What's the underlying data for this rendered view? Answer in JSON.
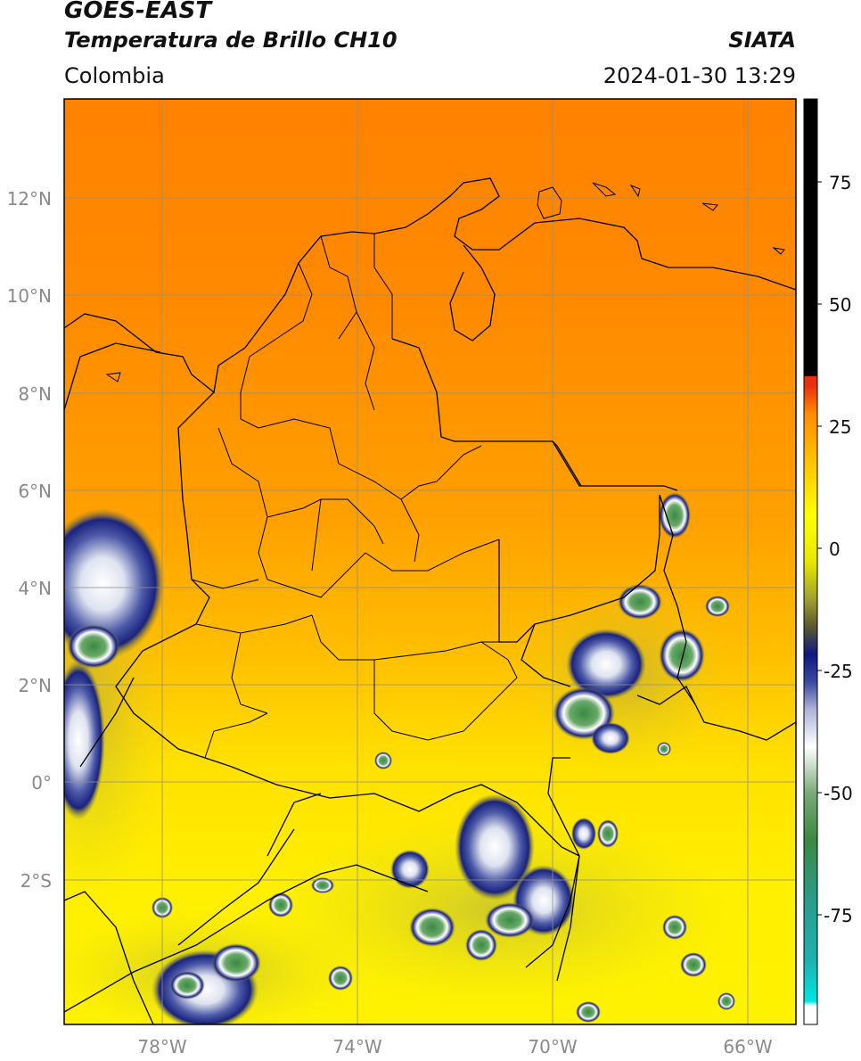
{
  "header": {
    "satellite": "GOES-EAST",
    "product": "Temperatura de Brillo CH10",
    "organization": "SIATA",
    "region": "Colombia",
    "datetime": "2024-01-30 13:29"
  },
  "map": {
    "lon_range": [
      -80,
      -65
    ],
    "lat_range": [
      -5,
      14
    ],
    "lat_ticks": [
      "12°N",
      "10°N",
      "8°N",
      "6°N",
      "4°N",
      "2°N",
      "0°",
      "2°S"
    ],
    "lon_ticks": [
      "78°W",
      "74°W",
      "70°W",
      "66°W"
    ]
  },
  "colorbar": {
    "ticks": [
      "75",
      "50",
      "25",
      "0",
      "-25",
      "-50",
      "-75"
    ],
    "colors": {
      "warm_top": "#000000",
      "zero": "#e83010",
      "orange": "#ff8c00",
      "yellow": "#ffff00",
      "olive": "#7a7a2a",
      "navy": "#101880",
      "white": "#ffffff",
      "green": "#2f8a3a",
      "teal": "#2a9d8f",
      "cyan": "#00e5e5"
    }
  }
}
